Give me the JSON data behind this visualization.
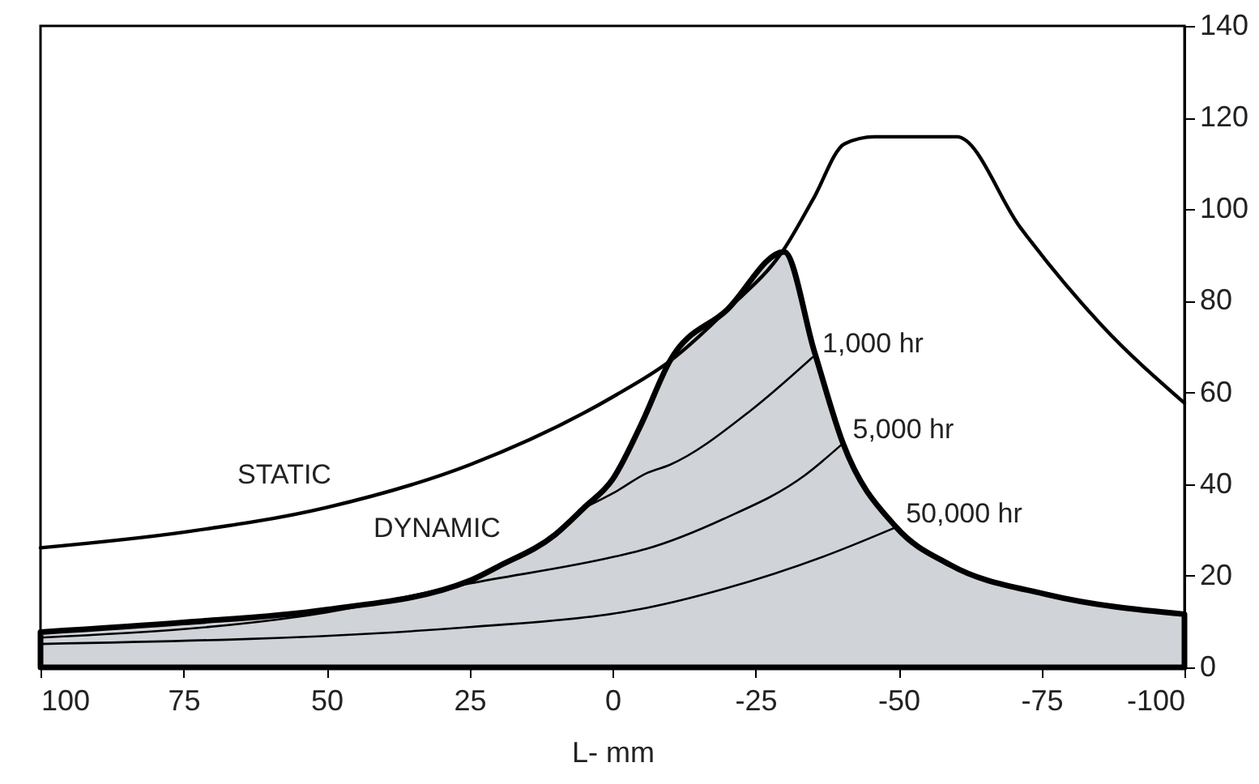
{
  "chart_data": {
    "type": "line",
    "xlabel": "L- mm",
    "xlim": [
      100,
      -100
    ],
    "xticks": [
      100,
      75,
      50,
      25,
      0,
      -25,
      -50,
      -75,
      -100
    ],
    "ylim": [
      0,
      140
    ],
    "yticks": [
      0,
      20,
      40,
      60,
      80,
      100,
      120,
      140
    ],
    "line_style": "solid",
    "series": [
      {
        "name": "DYNAMIC",
        "type": "area",
        "color": "#d0d3d8",
        "x": [
          100,
          75,
          50,
          25,
          20,
          10,
          5,
          0,
          -5,
          -10,
          -20,
          -30,
          -35.3,
          -40.3,
          -49.6,
          -59,
          -76,
          -100
        ],
        "values": [
          7.7,
          9.8,
          12.6,
          18.9,
          22,
          29,
          34.8,
          41,
          53,
          66.8,
          78,
          90.7,
          68.9,
          48.9,
          30.6,
          22.4,
          15.9,
          11.6
        ]
      },
      {
        "name": "STATIC",
        "color": "#000000",
        "x": [
          100,
          75,
          50,
          25,
          0,
          -10,
          -20,
          -30,
          -35,
          -40.6,
          -45.8,
          -60.2,
          -71.3,
          -85.5,
          -100
        ],
        "values": [
          26.1,
          29.5,
          34.9,
          44.2,
          59,
          66.8,
          78,
          91.3,
          102,
          114.3,
          115.8,
          115.8,
          96,
          74.7,
          57.7
        ]
      },
      {
        "name": "1,000 hr",
        "color": "#000000",
        "x": [
          5,
          -0.5,
          -6,
          -10,
          -24.1,
          -35
        ],
        "values": [
          34.8,
          38.3,
          42.4,
          44.2,
          56,
          67.7
        ]
      },
      {
        "name": "5,000 hr",
        "color": "#000000",
        "x": [
          100,
          50,
          25,
          -0.5,
          -6,
          -19.4,
          -33.5,
          -40.3
        ],
        "values": [
          6.5,
          12,
          18.3,
          24.2,
          25.9,
          32.4,
          41.8,
          48.9
        ]
      },
      {
        "name": "50,000 hr",
        "color": "#000000",
        "x": [
          100,
          25,
          -0.5,
          -6,
          -19.4,
          -38.4,
          -49.6
        ],
        "values": [
          5.1,
          8.8,
          11.8,
          13,
          17.1,
          24.9,
          30.6
        ]
      }
    ]
  }
}
